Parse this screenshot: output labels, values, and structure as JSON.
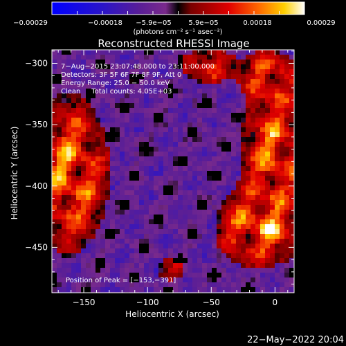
{
  "chart_data": {
    "type": "heatmap",
    "title": "Reconstructed RHESSI Image",
    "xlabel": "Heliocentric X (arcsec)",
    "ylabel": "Heliocentric Y (arcsec)",
    "xlim": [
      -175,
      15
    ],
    "ylim": [
      -487,
      -289
    ],
    "x_ticks": [
      -150,
      -100,
      -50,
      0
    ],
    "x_tick_labels": [
      "−150",
      "−100",
      "−50",
      "0"
    ],
    "y_ticks": [
      -300,
      -350,
      -400,
      -450
    ],
    "y_tick_labels": [
      "−300",
      "−350",
      "−400",
      "−450"
    ],
    "colorbar": {
      "range": [
        -0.00029,
        0.00029
      ],
      "tick_labels": [
        "−0.00029",
        "−0.00018",
        "−5.9e−05",
        "5.9e−05",
        "0.00018",
        "0.00029"
      ],
      "unit_text": "(photons cm⁻² s⁻¹ asec⁻²)",
      "colors": [
        "#0000ff",
        "#2a14c8",
        "#5a1e96",
        "#7a2a8c",
        "#000000",
        "#7a0000",
        "#e00000",
        "#ff6a00",
        "#ffd000",
        "#ffffff"
      ]
    },
    "annotations": [
      "7−Aug−2015 23:07:48.000 to 23:11:00.000",
      "Detectors: 3F 5F 6F 7F 8F 9F, Att 0",
      "Energy Range: 25.0 − 50.0 keV",
      "Clean     Total counts: 4.05E+03"
    ],
    "peak_label": "Position of Peak = [−153,−391]",
    "peak": {
      "x": -153,
      "y": -391
    },
    "grid": false
  },
  "footer": {
    "timestamp": "22−May−2022 20:04"
  }
}
